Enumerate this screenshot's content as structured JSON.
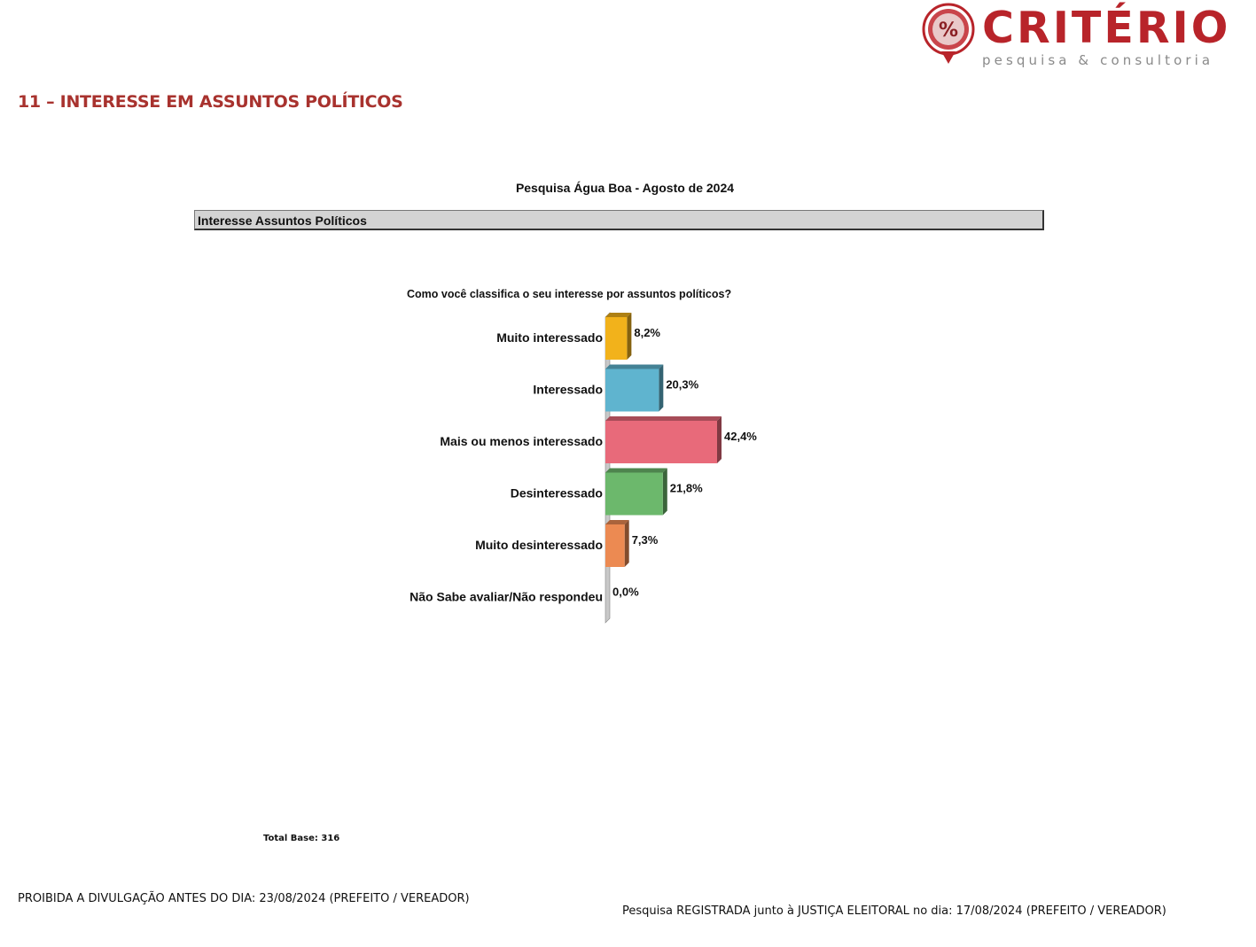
{
  "logo": {
    "name": "CRITÉRIO",
    "tagline": "pesquisa & consultoria",
    "seal_text": "%",
    "color": "#b8242a"
  },
  "section_title": "11 – INTERESSE EM ASSUNTOS POLÍTICOS",
  "band_label": "Interesse Assuntos Políticos",
  "total_base": "Total Base: 316",
  "footer": {
    "left": "PROIBIDA A DIVULGAÇÃO ANTES DO DIA: 23/08/2024 (PREFEITO / VEREADOR)",
    "right": "Pesquisa REGISTRADA junto à JUSTIÇA ELEITORAL no dia: 17/08/2024 (PREFEITO / VEREADOR)"
  },
  "chart_data": {
    "type": "bar",
    "orientation": "horizontal",
    "title": "Pesquisa Água Boa - Agosto de 2024",
    "subtitle": "Como você classifica o seu interesse por assuntos políticos?",
    "categories": [
      "Muito interessado",
      "Interessado",
      "Mais ou menos interessado",
      "Desinteressado",
      "Muito desinteressado",
      "Não Sabe avaliar/Não respondeu"
    ],
    "values": [
      8.2,
      20.3,
      42.4,
      21.8,
      7.3,
      0.0
    ],
    "value_labels": [
      "8,2%",
      "20,3%",
      "42,4%",
      "21,8%",
      "7,3%",
      "0,0%"
    ],
    "colors": [
      "#f2b21b",
      "#5fb4cf",
      "#e86a7a",
      "#6cb86c",
      "#ec8a52",
      "#b0b0b0"
    ],
    "xlim": [
      0,
      100
    ],
    "grid": false,
    "legend": "none"
  }
}
